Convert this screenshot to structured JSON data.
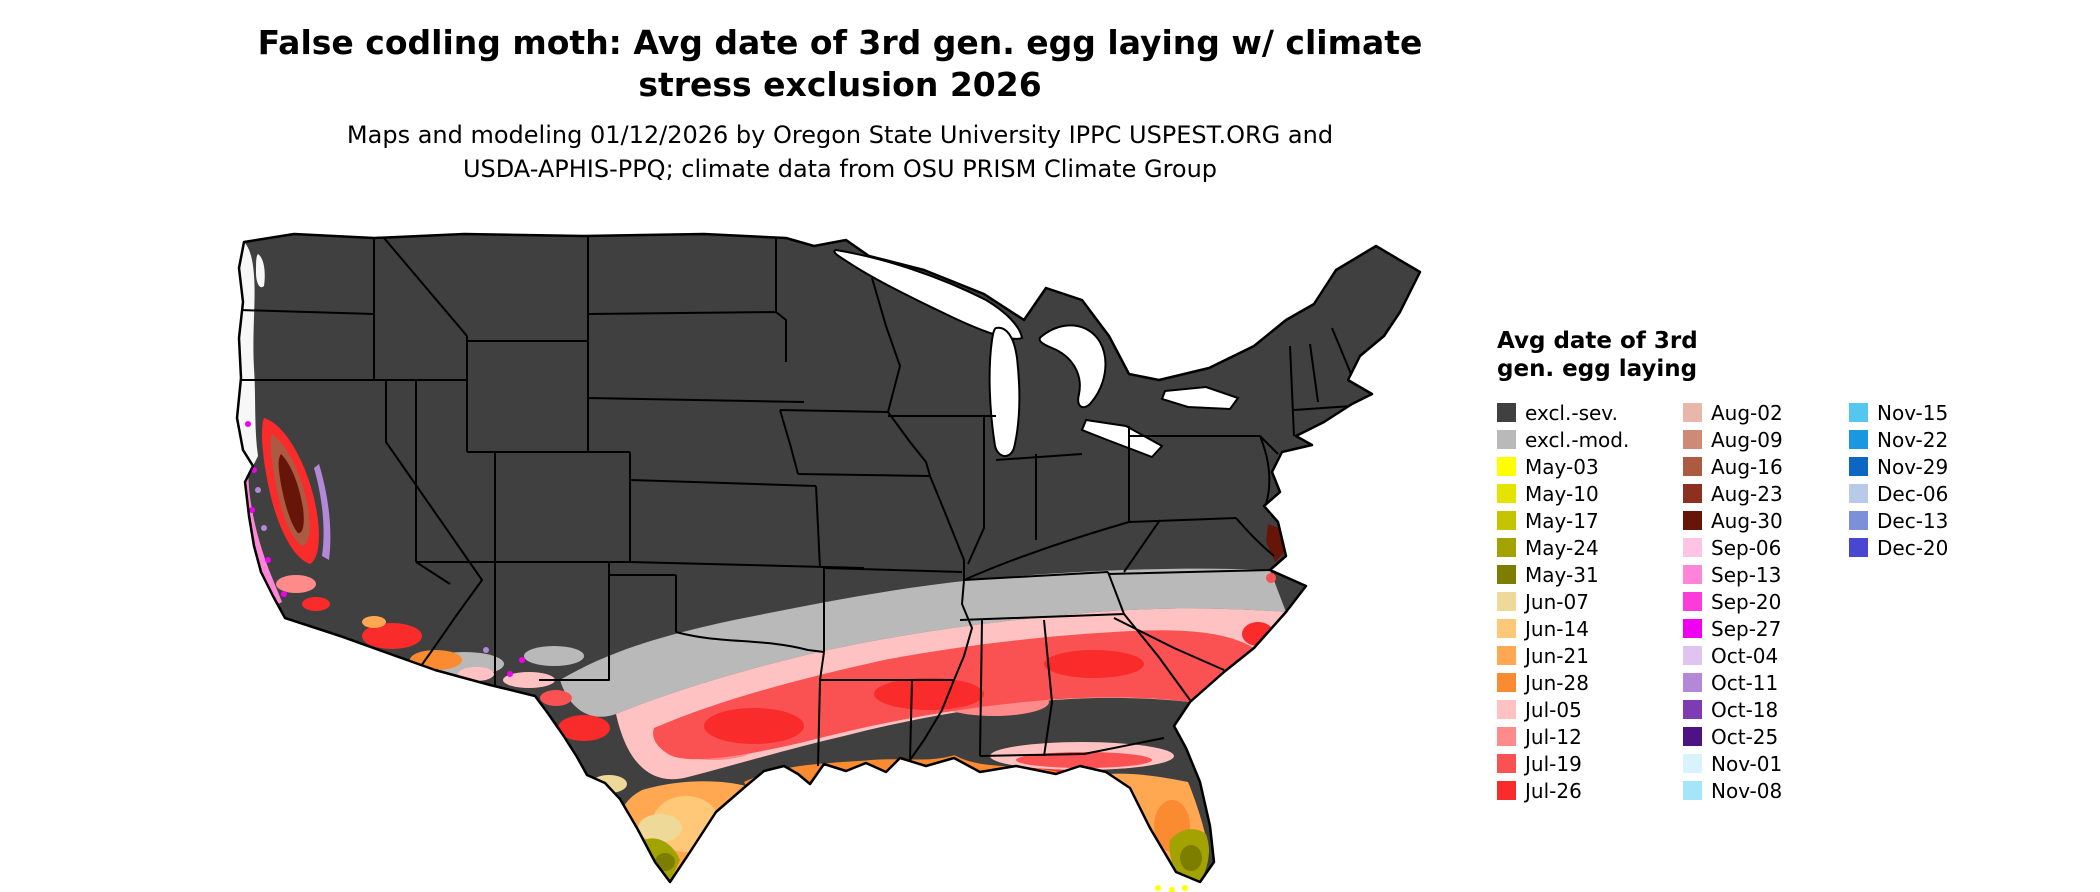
{
  "figure": {
    "title": {
      "line1": "False codling moth: Avg date of 3rd gen. egg laying w/ climate",
      "line2": "stress exclusion 2026"
    },
    "subtitle": {
      "line1": "Maps and modeling 01/12/2026 by Oregon State University IPPC USPEST.ORG and",
      "line2": "USDA-APHIS-PPQ; climate data from OSU PRISM Climate Group"
    }
  },
  "legend": {
    "title": "Avg date of 3rd\ngen. egg laying",
    "columns": [
      {
        "items": [
          {
            "key": "excl_sev",
            "label": "excl.-sev.",
            "color": "#404040"
          },
          {
            "key": "excl_mod",
            "label": "excl.-mod.",
            "color": "#b9b9b9"
          },
          {
            "key": "may03",
            "label": "May-03",
            "color": "#ffff00"
          },
          {
            "key": "may10",
            "label": "May-10",
            "color": "#e4e400"
          },
          {
            "key": "may17",
            "label": "May-17",
            "color": "#c4c400"
          },
          {
            "key": "may24",
            "label": "May-24",
            "color": "#a2a200"
          },
          {
            "key": "may31",
            "label": "May-31",
            "color": "#7d7d00"
          },
          {
            "key": "jun07",
            "label": "Jun-07",
            "color": "#efd998"
          },
          {
            "key": "jun14",
            "label": "Jun-14",
            "color": "#ffc878"
          },
          {
            "key": "jun21",
            "label": "Jun-21",
            "color": "#ffa851"
          },
          {
            "key": "jun28",
            "label": "Jun-28",
            "color": "#fb8b31"
          },
          {
            "key": "jul05",
            "label": "Jul-05",
            "color": "#ffc2c2"
          },
          {
            "key": "jul12",
            "label": "Jul-12",
            "color": "#ff8a8a"
          },
          {
            "key": "jul19",
            "label": "Jul-19",
            "color": "#fa5252"
          },
          {
            "key": "jul26",
            "label": "Jul-26",
            "color": "#f92b2b"
          }
        ]
      },
      {
        "items": [
          {
            "key": "aug02",
            "label": "Aug-02",
            "color": "#e9b6aa"
          },
          {
            "key": "aug09",
            "label": "Aug-09",
            "color": "#cd8b77"
          },
          {
            "key": "aug16",
            "label": "Aug-16",
            "color": "#ad5a42"
          },
          {
            "key": "aug23",
            "label": "Aug-23",
            "color": "#8c3120"
          },
          {
            "key": "aug30",
            "label": "Aug-30",
            "color": "#661508"
          },
          {
            "key": "sep06",
            "label": "Sep-06",
            "color": "#ffc4e4"
          },
          {
            "key": "sep13",
            "label": "Sep-13",
            "color": "#ff85d6"
          },
          {
            "key": "sep20",
            "label": "Sep-20",
            "color": "#fb3cd8"
          },
          {
            "key": "sep27",
            "label": "Sep-27",
            "color": "#f000f0"
          },
          {
            "key": "oct04",
            "label": "Oct-04",
            "color": "#dec4ef"
          },
          {
            "key": "oct11",
            "label": "Oct-11",
            "color": "#b388d8"
          },
          {
            "key": "oct18",
            "label": "Oct-18",
            "color": "#7e3cb4"
          },
          {
            "key": "oct25",
            "label": "Oct-25",
            "color": "#4e1382"
          },
          {
            "key": "nov01",
            "label": "Nov-01",
            "color": "#d9f3fc"
          },
          {
            "key": "nov08",
            "label": "Nov-08",
            "color": "#a5e5f8"
          }
        ]
      },
      {
        "items": [
          {
            "key": "nov15",
            "label": "Nov-15",
            "color": "#54c6f0"
          },
          {
            "key": "nov22",
            "label": "Nov-22",
            "color": "#1b96e0"
          },
          {
            "key": "nov29",
            "label": "Nov-29",
            "color": "#0c66c2"
          },
          {
            "key": "dec06",
            "label": "Dec-06",
            "color": "#b9c9ea"
          },
          {
            "key": "dec13",
            "label": "Dec-13",
            "color": "#7e8fd9"
          },
          {
            "key": "dec20",
            "label": "Dec-20",
            "color": "#4747d1"
          }
        ]
      }
    ]
  }
}
